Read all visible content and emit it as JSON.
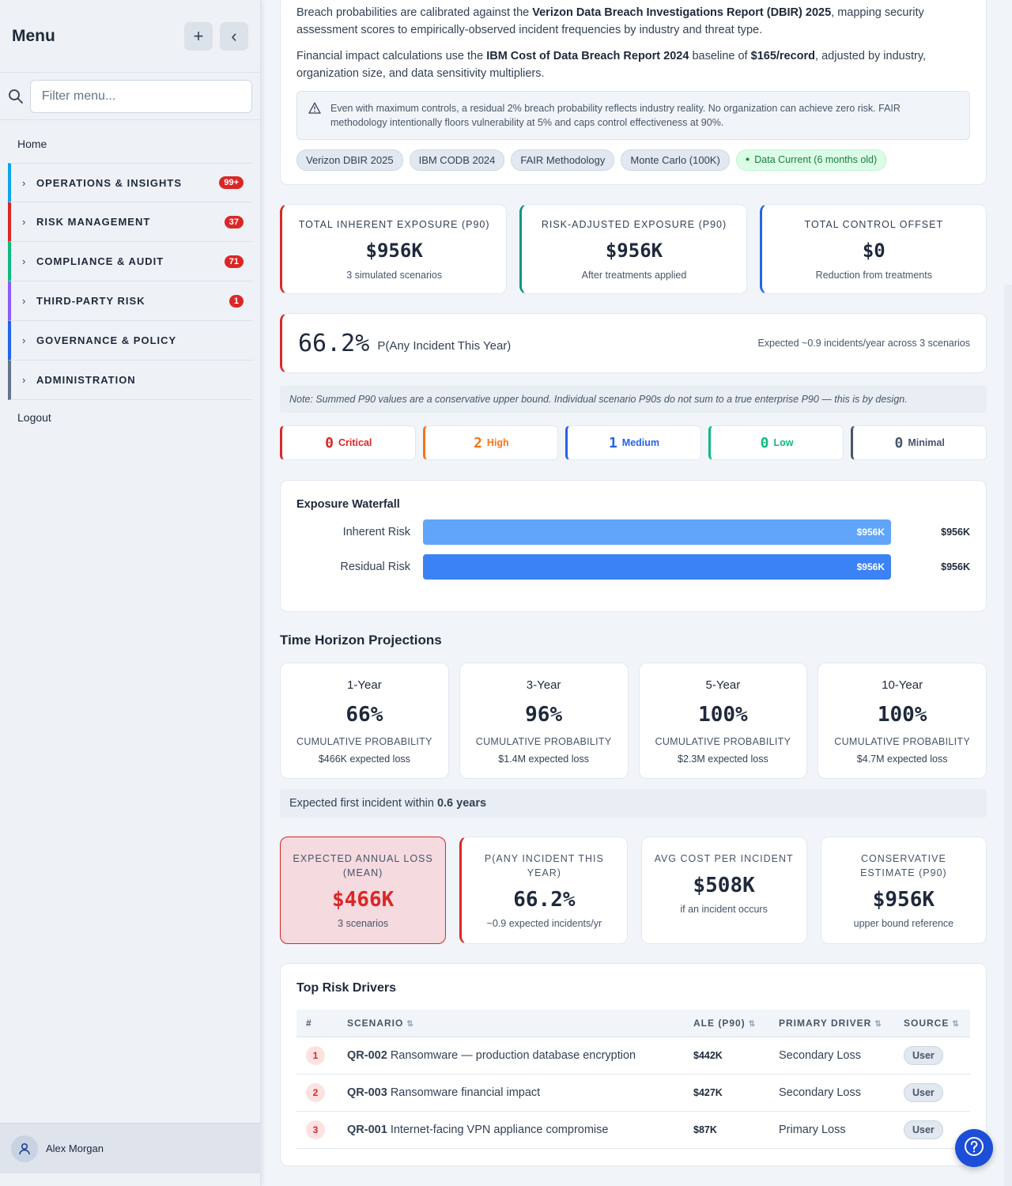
{
  "sidebar": {
    "title": "Menu",
    "add_label": "+",
    "collapse_label": "‹",
    "filter_placeholder": "Filter menu...",
    "home": "Home",
    "groups": [
      {
        "label": "OPERATIONS & INSIGHTS",
        "badge": "99+",
        "color": "#0ea5e9"
      },
      {
        "label": "RISK MANAGEMENT",
        "badge": "37",
        "color": "#dc2626"
      },
      {
        "label": "COMPLIANCE & AUDIT",
        "badge": "71",
        "color": "#10b981"
      },
      {
        "label": "THIRD-PARTY RISK",
        "badge": "1",
        "color": "#8b5cf6"
      },
      {
        "label": "GOVERNANCE & POLICY",
        "badge": "",
        "color": "#2563eb"
      },
      {
        "label": "ADMINISTRATION",
        "badge": "",
        "color": "#64748b"
      }
    ],
    "logout": "Logout",
    "user_name": "Alex Morgan"
  },
  "methodology": {
    "p1_a": "Breach probabilities are calibrated against the ",
    "p1_b": "Verizon Data Breach Investigations Report (DBIR) 2025",
    "p1_c": ", mapping security assessment scores to empirically-observed incident frequencies by industry and threat type.",
    "p2_a": "Financial impact calculations use the ",
    "p2_b": "IBM Cost of Data Breach Report 2024",
    "p2_c": " baseline of ",
    "p2_d": "$165/record",
    "p2_e": ", adjusted by industry, organization size, and data sensitivity multipliers.",
    "note": "Even with maximum controls, a residual 2% breach probability reflects industry reality. No organization can achieve zero risk. FAIR methodology intentionally floors vulnerability at 5% and caps control effectiveness at 90%.",
    "pills": [
      "Verizon DBIR 2025",
      "IBM CODB 2024",
      "FAIR Methodology",
      "Monte Carlo (100K)"
    ],
    "status_pill": "Data Current (6 months old)"
  },
  "kpis": [
    {
      "label": "TOTAL INHERENT EXPOSURE (P90)",
      "value": "$956K",
      "sub": "3 simulated scenarios",
      "color": "#dc2626"
    },
    {
      "label": "RISK-ADJUSTED EXPOSURE (P90)",
      "value": "$956K",
      "sub": "After treatments applied",
      "color": "#0d9488"
    },
    {
      "label": "TOTAL CONTROL OFFSET",
      "value": "$0",
      "sub": "Reduction from treatments",
      "color": "#2563eb"
    }
  ],
  "probability": {
    "value": "66.2%",
    "label": "P(Any Incident This Year)",
    "detail": "Expected ~0.9 incidents/year across 3 scenarios"
  },
  "disclaimer": "Note: Summed P90 values are a conservative upper bound. Individual scenario P90s do not sum to a true enterprise P90 — this is by design.",
  "severity": [
    {
      "count": "0",
      "label": "Critical",
      "color": "#dc2626"
    },
    {
      "count": "2",
      "label": "High",
      "color": "#f97316"
    },
    {
      "count": "1",
      "label": "Medium",
      "color": "#2563eb"
    },
    {
      "count": "0",
      "label": "Low",
      "color": "#10b981"
    },
    {
      "count": "0",
      "label": "Minimal",
      "color": "#475569"
    }
  ],
  "waterfall": {
    "title": "Exposure Waterfall",
    "rows": [
      {
        "label": "Inherent Risk",
        "bar_text": "$956K",
        "end_text": "$956K",
        "fraction": 1.0,
        "color": "#60a5fa"
      },
      {
        "label": "Residual Risk",
        "bar_text": "$956K",
        "end_text": "$956K",
        "fraction": 1.0,
        "color": "#3b82f6"
      }
    ]
  },
  "time_horizon": {
    "title": "Time Horizon Projections",
    "cards": [
      {
        "period": "1-Year",
        "value": "66%",
        "label": "CUMULATIVE PROBABILITY",
        "sub": "$466K expected loss"
      },
      {
        "period": "3-Year",
        "value": "96%",
        "label": "CUMULATIVE PROBABILITY",
        "sub": "$1.4M expected loss"
      },
      {
        "period": "5-Year",
        "value": "100%",
        "label": "CUMULATIVE PROBABILITY",
        "sub": "$2.3M expected loss"
      },
      {
        "period": "10-Year",
        "value": "100%",
        "label": "CUMULATIVE PROBABILITY",
        "sub": "$4.7M expected loss"
      }
    ],
    "first_incident_prefix": "Expected first incident within",
    "first_incident_value": "0.6 years"
  },
  "summary": [
    {
      "label": "EXPECTED ANNUAL LOSS (MEAN)",
      "value": "$466K",
      "sub": "3 scenarios"
    },
    {
      "label": "P(ANY INCIDENT THIS YEAR)",
      "value": "66.2%",
      "sub": "~0.9 expected incidents/yr"
    },
    {
      "label": "AVG COST PER INCIDENT",
      "value": "$508K",
      "sub": "if an incident occurs"
    },
    {
      "label": "CONSERVATIVE ESTIMATE (P90)",
      "value": "$956K",
      "sub": "upper bound reference"
    }
  ],
  "drivers": {
    "title": "Top Risk Drivers",
    "headers": [
      "#",
      "SCENARIO",
      "ALE (P90)",
      "PRIMARY DRIVER",
      "SOURCE"
    ],
    "rows": [
      {
        "rank": "1",
        "id": "QR-002",
        "name": "Ransomware — production database encryption",
        "ale": "$442K",
        "driver": "Secondary Loss",
        "source": "User"
      },
      {
        "rank": "2",
        "id": "QR-003",
        "name": "Ransomware financial impact",
        "ale": "$427K",
        "driver": "Secondary Loss",
        "source": "User"
      },
      {
        "rank": "3",
        "id": "QR-001",
        "name": "Internet-facing VPN appliance compromise",
        "ale": "$87K",
        "driver": "Primary Loss",
        "source": "User"
      }
    ]
  }
}
